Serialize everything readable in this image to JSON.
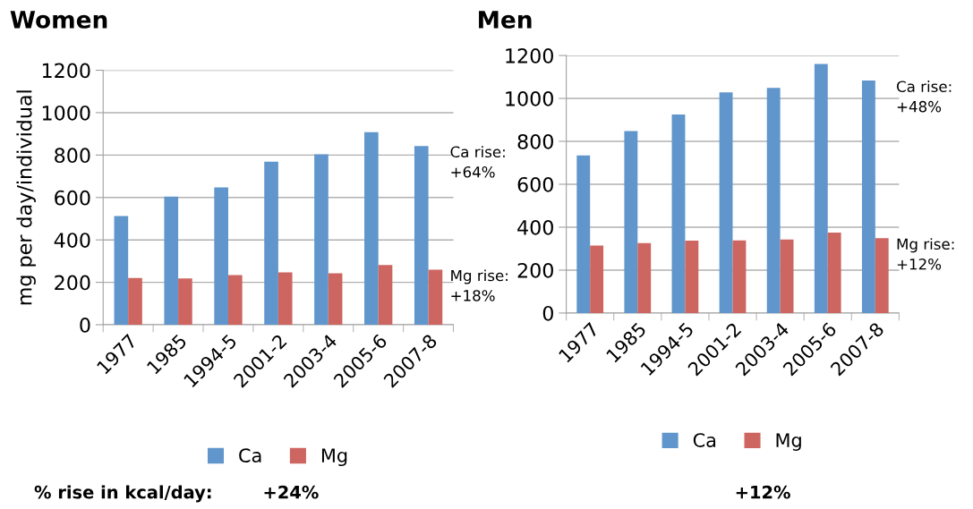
{
  "chart_data": [
    {
      "type": "bar",
      "title": "Women",
      "ylabel": "mg per day/individual",
      "categories": [
        "1977",
        "1985",
        "1994-5",
        "2001-2",
        "2003-4",
        "2005-6",
        "2007-8"
      ],
      "series": [
        {
          "name": "Ca",
          "color": "#6096cb",
          "values": [
            513,
            604,
            648,
            769,
            804,
            908,
            843
          ]
        },
        {
          "name": "Mg",
          "color": "#cd6560",
          "values": [
            221,
            218,
            234,
            247,
            243,
            282,
            260
          ]
        }
      ],
      "ylim": [
        0,
        1200
      ],
      "yticks": [
        0,
        200,
        400,
        600,
        800,
        1000,
        1200
      ],
      "grid": "y",
      "legend": "bottom",
      "annotations": [
        {
          "text": "Ca rise:\n+64%",
          "x": "2007-8",
          "y": 843
        },
        {
          "text": "Mg rise:\n+18%",
          "x": "2007-8",
          "y": 260
        },
        "% rise in kcal/day:",
        "+24%"
      ]
    },
    {
      "type": "bar",
      "title": "Men",
      "categories": [
        "1977",
        "1985",
        "1994-5",
        "2001-2",
        "2003-4",
        "2005-6",
        "2007-8"
      ],
      "series": [
        {
          "name": "Ca",
          "color": "#6096cb",
          "values": [
            734,
            848,
            925,
            1028,
            1049,
            1161,
            1083
          ]
        },
        {
          "name": "Mg",
          "color": "#cd6560",
          "values": [
            314,
            326,
            337,
            338,
            343,
            375,
            349
          ]
        }
      ],
      "ylim": [
        0,
        1200
      ],
      "yticks": [
        0,
        200,
        400,
        600,
        800,
        1000,
        1200
      ],
      "grid": "y",
      "legend": "bottom",
      "annotations": [
        {
          "text": "Ca rise:\n+48%",
          "x": "2007-8",
          "y": 1083
        },
        {
          "text": "Mg rise:\n+12%",
          "x": "2007-8",
          "y": 349
        },
        "+12%"
      ]
    }
  ]
}
